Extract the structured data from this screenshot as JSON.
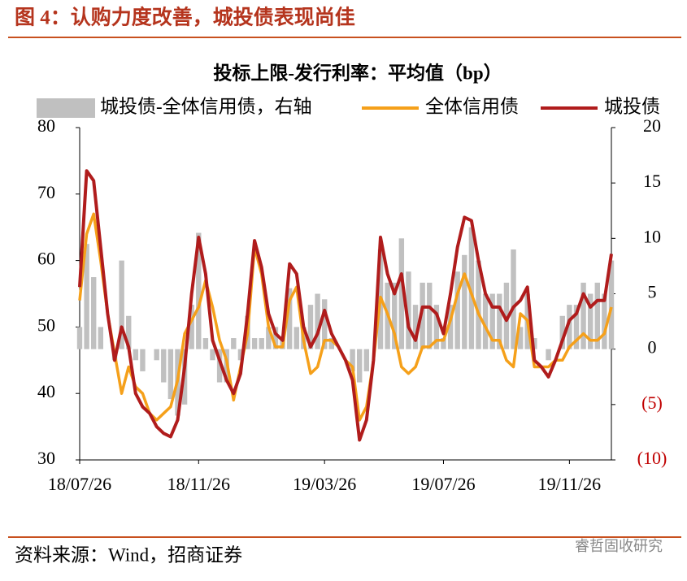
{
  "header": {
    "title": "图 4：认购力度改善，城投债表现尚佳"
  },
  "footer": {
    "source": "资料来源：Wind，招商证券",
    "watermark": "睿哲固收研究"
  },
  "chart_data": {
    "type": "bar-line",
    "title": "投标上限-发行利率：平均值（bp）",
    "categories": [
      "18/07/26",
      null,
      null,
      null,
      null,
      null,
      null,
      null,
      null,
      null,
      null,
      null,
      null,
      null,
      null,
      null,
      null,
      "18/11/26",
      null,
      null,
      null,
      null,
      null,
      null,
      null,
      null,
      null,
      null,
      null,
      null,
      null,
      null,
      null,
      null,
      null,
      "19/03/26",
      null,
      null,
      null,
      null,
      null,
      null,
      null,
      null,
      null,
      null,
      null,
      null,
      null,
      null,
      null,
      null,
      "19/07/26",
      null,
      null,
      null,
      null,
      null,
      null,
      null,
      null,
      null,
      null,
      null,
      null,
      null,
      null,
      null,
      null,
      null,
      "19/11/26",
      null,
      null,
      null,
      null,
      null,
      null
    ],
    "series": [
      {
        "name": "城投债-全体信用债，右轴",
        "color": "#c0c0c0",
        "kind": "bar",
        "axis": "y2",
        "values": [
          2,
          9.5,
          6.5,
          2,
          0,
          -1,
          8,
          3,
          -1,
          -2,
          0,
          -1,
          -3,
          -4.5,
          -6,
          -5,
          4,
          10.5,
          1,
          -1,
          -3,
          -3,
          1,
          -1,
          3,
          1,
          1,
          2,
          2,
          1,
          5.5,
          2,
          2,
          4,
          5,
          4.5,
          1,
          0,
          0,
          -2,
          -3,
          -2,
          0,
          9,
          6,
          6,
          10,
          7,
          4,
          6,
          6,
          4,
          1,
          4,
          7,
          8.5,
          11,
          8,
          5,
          5,
          5,
          6,
          9,
          2,
          5,
          1,
          0,
          -1,
          0,
          3,
          4,
          4,
          6,
          5,
          6,
          5,
          8
        ]
      },
      {
        "name": "全体信用债",
        "color": "#f5a01a",
        "kind": "line",
        "values": [
          54,
          64,
          67,
          60,
          52,
          46,
          40,
          44,
          41,
          40,
          37,
          36,
          37,
          38,
          42,
          49,
          51,
          53,
          57,
          53,
          48,
          45,
          39,
          44,
          49,
          62,
          58,
          50,
          47,
          47,
          54,
          56,
          48,
          43,
          44,
          48,
          48,
          47,
          45,
          44,
          36,
          38,
          45,
          54.5,
          52,
          49,
          44,
          43,
          44,
          47,
          47,
          48,
          48,
          51,
          55,
          58,
          55,
          52,
          50,
          48,
          48,
          45,
          44,
          52,
          51,
          44,
          44,
          44,
          45,
          45,
          47,
          48,
          49,
          48,
          48,
          49,
          53
        ]
      },
      {
        "name": "城投债",
        "color": "#b01c1c",
        "kind": "line",
        "values": [
          56,
          73.5,
          72,
          62,
          52,
          45,
          50,
          47,
          40,
          38,
          37,
          35,
          34,
          33.5,
          36,
          44,
          55,
          63.5,
          58,
          48,
          45,
          42,
          40,
          43,
          52,
          63,
          59,
          52,
          49,
          48,
          59.5,
          58,
          50,
          47,
          49,
          52.5,
          49,
          47,
          45,
          42,
          33,
          36,
          45,
          63.5,
          58,
          55,
          58,
          50,
          48,
          53,
          53,
          52,
          49,
          55,
          62,
          66.5,
          66,
          60,
          55,
          53,
          53,
          51,
          53,
          54,
          56,
          45,
          44,
          42.5,
          45,
          48,
          51,
          52,
          55,
          53,
          54,
          54,
          61
        ]
      }
    ],
    "ylim": [
      30,
      80
    ],
    "yticks": [
      30,
      40,
      50,
      60,
      70,
      80
    ],
    "y2lim": [
      -10,
      20
    ],
    "y2ticks": [
      {
        "value": -10,
        "label": "(10)"
      },
      {
        "value": -5,
        "label": "(5)"
      },
      0,
      5,
      10,
      15,
      20
    ],
    "negative_label_color": "#c00000",
    "grid": false,
    "legend": "top"
  }
}
